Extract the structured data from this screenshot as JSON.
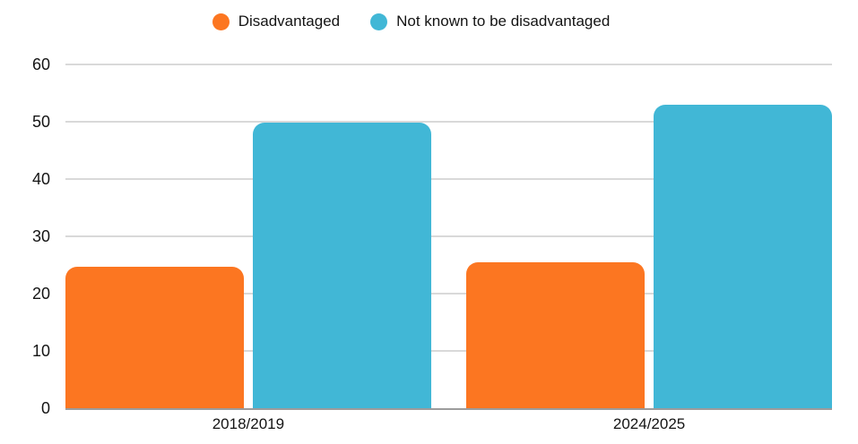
{
  "chart_data": {
    "type": "bar",
    "title": "",
    "categories": [
      "2018/2019",
      "2024/2025"
    ],
    "series": [
      {
        "name": "Disadvantaged",
        "color": "#FC7621",
        "values": [
          24.7,
          25.5
        ]
      },
      {
        "name": "Not known to be disadvantaged",
        "color": "#41B7D6",
        "values": [
          49.9,
          53.0
        ]
      }
    ],
    "xlabel": "",
    "ylabel": "",
    "ylim": [
      0,
      60
    ],
    "yticks": [
      0,
      10,
      20,
      30,
      40,
      50,
      60
    ],
    "grid": true,
    "legend_position": "top"
  },
  "colors": {
    "background": "#FFFFFF",
    "gridline": "#D9D9D9",
    "axis_line": "#9C9C9C",
    "text": "#141414",
    "series_disadvantaged": "#FC7621",
    "series_not_known": "#41B7D6"
  }
}
